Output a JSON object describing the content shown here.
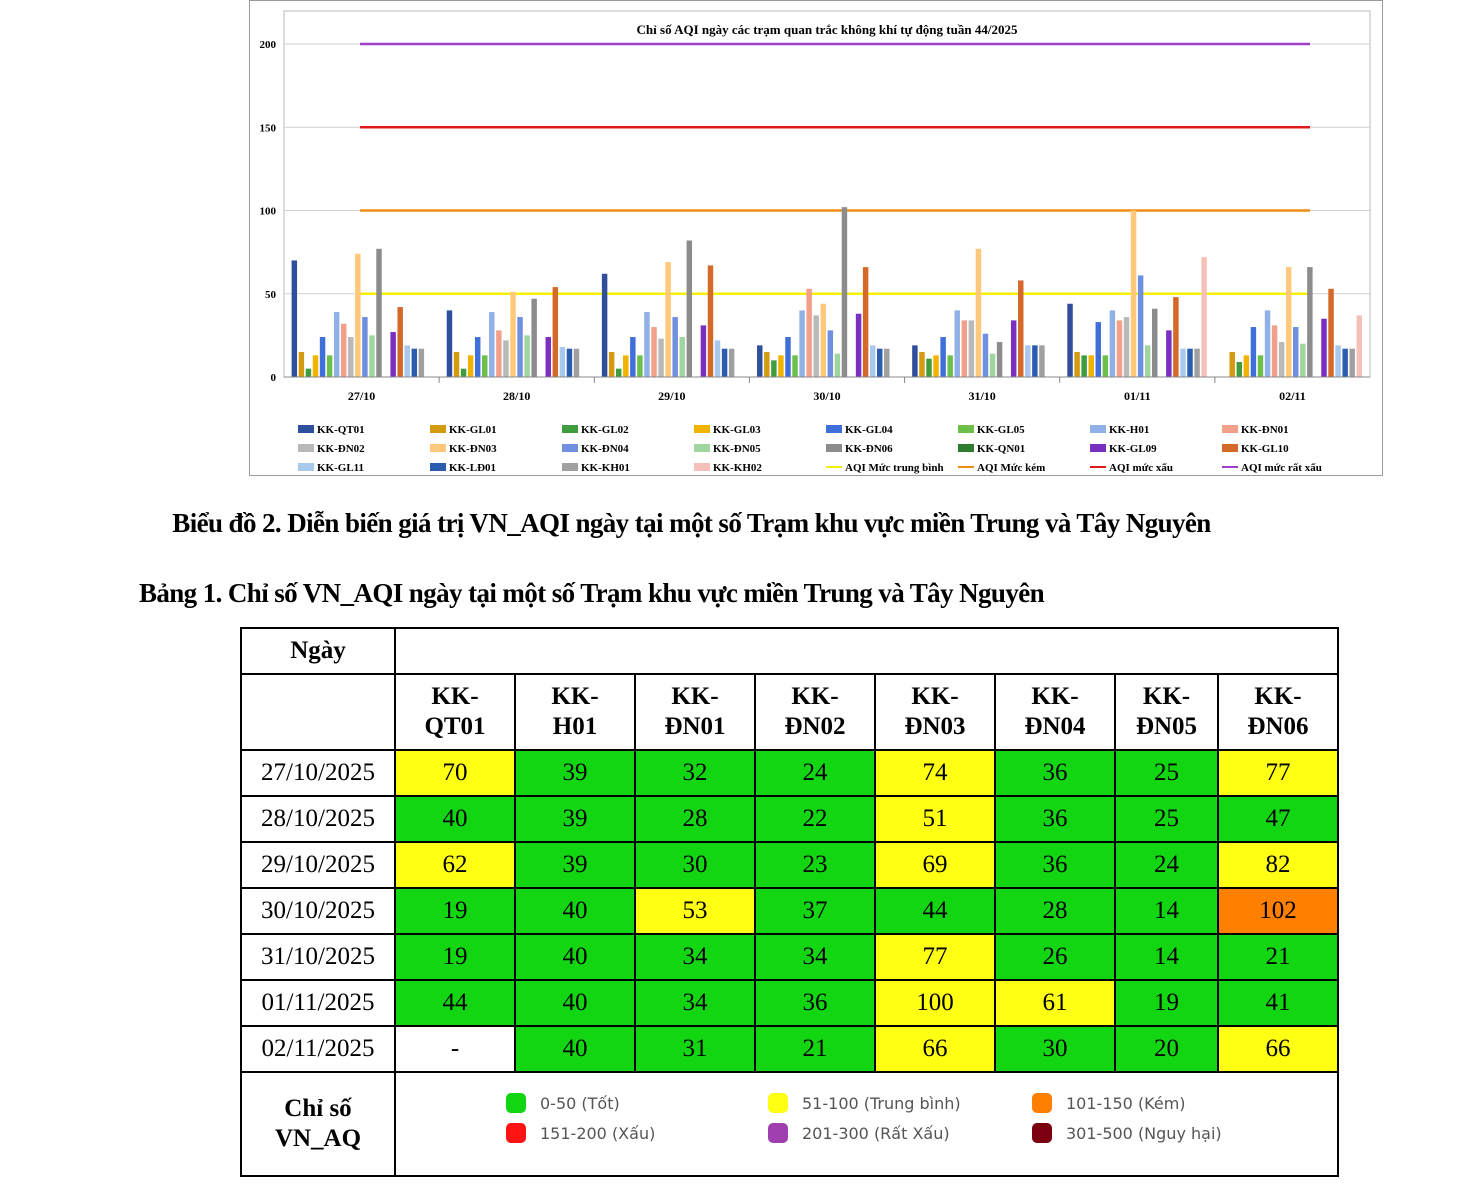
{
  "chart_data": {
    "type": "bar",
    "title": "Chỉ số AQI ngày các trạm quan trắc không khí tự động tuần 44/2025",
    "categories": [
      "27/10",
      "28/10",
      "29/10",
      "30/10",
      "31/10",
      "01/11",
      "02/11"
    ],
    "ylim": [
      0,
      200
    ],
    "yticks": [
      "0",
      "50",
      "100",
      "150",
      "200"
    ],
    "series": [
      {
        "name": "KK-QT01",
        "color": "#2f4f9c",
        "values": [
          70,
          40,
          62,
          19,
          19,
          44,
          null
        ]
      },
      {
        "name": "KK-GL01",
        "color": "#d49a12",
        "values": [
          15,
          15,
          15,
          15,
          15,
          15,
          15
        ]
      },
      {
        "name": "KK-GL02",
        "color": "#3f9c3f",
        "values": [
          5,
          5,
          5,
          10,
          11,
          13,
          9
        ]
      },
      {
        "name": "KK-GL03",
        "color": "#f0b400",
        "values": [
          13,
          13,
          13,
          13,
          13,
          13,
          13
        ]
      },
      {
        "name": "KK-GL04",
        "color": "#3f6fd8",
        "values": [
          24,
          24,
          24,
          24,
          24,
          33,
          30
        ]
      },
      {
        "name": "KK-GL05",
        "color": "#6cc04a",
        "values": [
          13,
          13,
          13,
          13,
          13,
          13,
          13
        ]
      },
      {
        "name": "KK-H01",
        "color": "#8fb1e8",
        "values": [
          39,
          39,
          39,
          40,
          40,
          40,
          40
        ]
      },
      {
        "name": "KK-ĐN01",
        "color": "#f2a08a",
        "values": [
          32,
          28,
          30,
          53,
          34,
          34,
          31
        ]
      },
      {
        "name": "KK-ĐN02",
        "color": "#b9b9b9",
        "values": [
          24,
          22,
          23,
          37,
          34,
          36,
          21
        ]
      },
      {
        "name": "KK-ĐN03",
        "color": "#ffc87a",
        "values": [
          74,
          51,
          69,
          44,
          77,
          100,
          66
        ]
      },
      {
        "name": "KK-ĐN04",
        "color": "#6f8fe0",
        "values": [
          36,
          36,
          36,
          28,
          26,
          61,
          30
        ]
      },
      {
        "name": "KK-ĐN05",
        "color": "#9fd69f",
        "values": [
          25,
          25,
          24,
          14,
          14,
          19,
          20
        ]
      },
      {
        "name": "KK-ĐN06",
        "color": "#8c8c8c",
        "values": [
          77,
          47,
          82,
          102,
          21,
          41,
          66
        ]
      },
      {
        "name": "KK-QN01",
        "color": "#2e7d2e",
        "values": [
          null,
          null,
          null,
          null,
          null,
          null,
          null
        ]
      },
      {
        "name": "KK-GL09",
        "color": "#7a2fc0",
        "values": [
          27,
          24,
          31,
          38,
          34,
          28,
          35
        ]
      },
      {
        "name": "KK-GL10",
        "color": "#d4692a",
        "values": [
          42,
          54,
          67,
          66,
          58,
          48,
          53
        ]
      },
      {
        "name": "KK-GL11",
        "color": "#a8c8ee",
        "values": [
          19,
          18,
          22,
          19,
          19,
          17,
          19
        ]
      },
      {
        "name": "KK-LĐ01",
        "color": "#2a5db0",
        "values": [
          17,
          17,
          17,
          17,
          19,
          17,
          17
        ]
      },
      {
        "name": "KK-KH01",
        "color": "#a0a0a0",
        "values": [
          17,
          17,
          17,
          17,
          19,
          17,
          17
        ]
      },
      {
        "name": "KK-KH02",
        "color": "#f5c0b8",
        "values": [
          null,
          null,
          null,
          null,
          null,
          72,
          37
        ]
      }
    ],
    "reference_lines": [
      {
        "name": "AQI Mức trung bình",
        "value": 50,
        "color": "#f5f000"
      },
      {
        "name": "AQI Mức kém",
        "value": 100,
        "color": "#f08c14"
      },
      {
        "name": "AQI mức xấu",
        "value": 150,
        "color": "#e01919"
      },
      {
        "name": "AQI mức rất xấu",
        "value": 200,
        "color": "#a040c8"
      }
    ],
    "legend_position": "bottom"
  },
  "captions": {
    "chart": "Biểu đồ 2. Diễn biến giá trị VN_AQI ngày tại một số Trạm khu vực miền Trung và Tây Nguyên",
    "table": "Bảng 1. Chỉ số VN_AQI ngày tại một số Trạm khu vực miền Trung và Tây Nguyên"
  },
  "table": {
    "date_header": "Ngày",
    "columns": [
      {
        "l1": "KK-",
        "l2": "QT01"
      },
      {
        "l1": "KK-",
        "l2": "H01"
      },
      {
        "l1": "KK-",
        "l2": "ĐN01"
      },
      {
        "l1": "KK-",
        "l2": "ĐN02"
      },
      {
        "l1": "KK-",
        "l2": "ĐN03"
      },
      {
        "l1": "KK-",
        "l2": "ĐN04"
      },
      {
        "l1": "KK-",
        "l2": "ĐN05"
      },
      {
        "l1": "KK-",
        "l2": "ĐN06"
      }
    ],
    "rows": [
      {
        "date": "27/10/2025",
        "values": [
          "70",
          "39",
          "32",
          "24",
          "74",
          "36",
          "25",
          "77"
        ],
        "levels": [
          "y",
          "g",
          "g",
          "g",
          "y",
          "g",
          "g",
          "y"
        ]
      },
      {
        "date": "28/10/2025",
        "values": [
          "40",
          "39",
          "28",
          "22",
          "51",
          "36",
          "25",
          "47"
        ],
        "levels": [
          "g",
          "g",
          "g",
          "g",
          "y",
          "g",
          "g",
          "g"
        ]
      },
      {
        "date": "29/10/2025",
        "values": [
          "62",
          "39",
          "30",
          "23",
          "69",
          "36",
          "24",
          "82"
        ],
        "levels": [
          "y",
          "g",
          "g",
          "g",
          "y",
          "g",
          "g",
          "y"
        ]
      },
      {
        "date": "30/10/2025",
        "values": [
          "19",
          "40",
          "53",
          "37",
          "44",
          "28",
          "14",
          "102"
        ],
        "levels": [
          "g",
          "g",
          "y",
          "g",
          "g",
          "g",
          "g",
          "o"
        ]
      },
      {
        "date": "31/10/2025",
        "values": [
          "19",
          "40",
          "34",
          "34",
          "77",
          "26",
          "14",
          "21"
        ],
        "levels": [
          "g",
          "g",
          "g",
          "g",
          "y",
          "g",
          "g",
          "g"
        ]
      },
      {
        "date": "01/11/2025",
        "values": [
          "44",
          "40",
          "34",
          "36",
          "100",
          "61",
          "19",
          "41"
        ],
        "levels": [
          "g",
          "g",
          "g",
          "g",
          "y",
          "y",
          "g",
          "g"
        ]
      },
      {
        "date": "02/11/2025",
        "values": [
          "-",
          "40",
          "31",
          "21",
          "66",
          "30",
          "20",
          "66"
        ],
        "levels": [
          "w",
          "g",
          "g",
          "g",
          "y",
          "g",
          "g",
          "y"
        ]
      }
    ],
    "legend_header_l1": "Chỉ số",
    "legend_header_l2": "VN_AQ",
    "legend": [
      {
        "label": "0-50 (Tốt)",
        "color": "#13d613"
      },
      {
        "label": "51-100 (Trung bình)",
        "color": "#ffff14"
      },
      {
        "label": "101-150 (Kém)",
        "color": "#ff8000"
      },
      {
        "label": "151-200 (Xấu)",
        "color": "#ff1414"
      },
      {
        "label": "201-300 (Rất Xấu)",
        "color": "#a040b0"
      },
      {
        "label": "301-500 (Nguy hại)",
        "color": "#7a0010"
      }
    ]
  }
}
